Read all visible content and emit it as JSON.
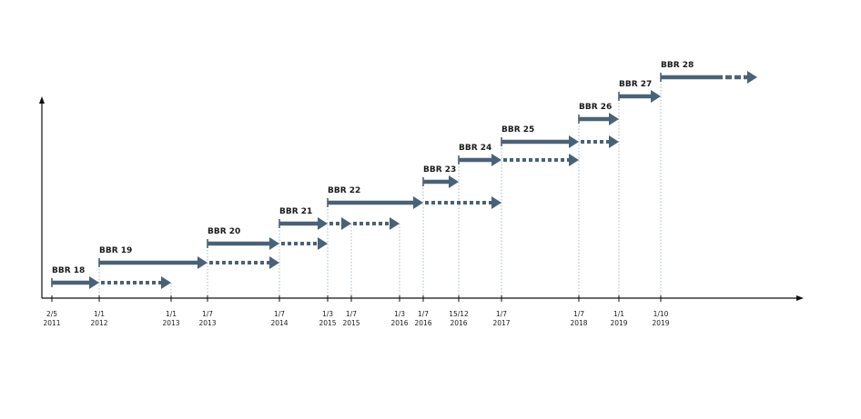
{
  "diagram": {
    "colors": {
      "arrow": "#4a6278",
      "axis": "#111111",
      "guide": "#8fa8b8"
    },
    "ticks": [
      {
        "day": "2/5",
        "year": "2011"
      },
      {
        "day": "1/1",
        "year": "2012"
      },
      {
        "day": "1/1",
        "year": "2013"
      },
      {
        "day": "1/7",
        "year": "2013"
      },
      {
        "day": "1/7",
        "year": "2014"
      },
      {
        "day": "1/3",
        "year": "2015"
      },
      {
        "day": "1/7",
        "year": "2015"
      },
      {
        "day": "1/3",
        "year": "2016"
      },
      {
        "day": "1/7",
        "year": "2016"
      },
      {
        "day": "15/12",
        "year": "2016"
      },
      {
        "day": "1/7",
        "year": "2017"
      },
      {
        "day": "1/7",
        "year": "2018"
      },
      {
        "day": "1/1",
        "year": "2019"
      },
      {
        "day": "1/10",
        "year": "2019"
      }
    ],
    "versions": [
      {
        "label": "BBR 18",
        "start": 0,
        "solid_end": 1,
        "dotted_end": 2
      },
      {
        "label": "BBR 19",
        "start": 1,
        "solid_end": 3,
        "dotted_end": 4
      },
      {
        "label": "BBR 20",
        "start": 3,
        "solid_end": 4,
        "dotted_end": 5
      },
      {
        "label": "BBR 21",
        "start": 4,
        "solid_end": 5,
        "dotted_end": 6,
        "dotted_end_2": 7
      },
      {
        "label": "BBR 22",
        "start": 5,
        "solid_end": 8,
        "dotted_end": 10
      },
      {
        "label": "BBR 23",
        "start": 8,
        "solid_end": 9
      },
      {
        "label": "BBR 24",
        "start": 9,
        "solid_end": 10,
        "dotted_end": 11
      },
      {
        "label": "BBR 25",
        "start": 10,
        "solid_end": 11,
        "dotted_end": 12
      },
      {
        "label": "BBR 26",
        "start": 11,
        "solid_end": 12
      },
      {
        "label": "BBR 27",
        "start": 12,
        "solid_end": 13
      },
      {
        "label": "BBR 28",
        "start": 13,
        "open_ended": true
      }
    ]
  }
}
